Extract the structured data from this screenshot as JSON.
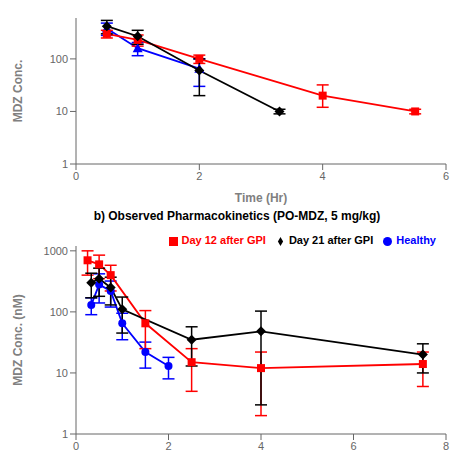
{
  "chart_data": [
    {
      "type": "line",
      "x_label": "Time (Hr)",
      "y_label": "MDZ Conc.",
      "log": "y",
      "grid": false,
      "xlim": [
        0,
        6
      ],
      "xticks": [
        0,
        2,
        4,
        6
      ],
      "ylim": [
        1,
        600
      ],
      "yticks": [
        1,
        10,
        100
      ],
      "series": [
        {
          "color": "#0000FF",
          "marker": "triangle",
          "x": [
            0.5,
            1.0,
            2.0
          ],
          "values": [
            380,
            160,
            65
          ],
          "error_low": [
            100,
            45,
            35
          ],
          "error_high": [
            100,
            45,
            35
          ]
        },
        {
          "color": "#FF0000",
          "marker": "square",
          "x": [
            0.5,
            1.0,
            2.0,
            4.0,
            5.5
          ],
          "values": [
            300,
            230,
            100,
            20,
            10
          ],
          "error_low": [
            50,
            55,
            18,
            8,
            1
          ],
          "error_high": [
            50,
            55,
            18,
            12,
            1
          ]
        },
        {
          "color": "#000000",
          "marker": "diamond",
          "x": [
            0.5,
            1.0,
            2.0,
            3.3
          ],
          "values": [
            420,
            270,
            60,
            10
          ],
          "error_low": [
            120,
            80,
            40,
            1
          ],
          "error_high": [
            120,
            80,
            40,
            1
          ]
        }
      ]
    },
    {
      "type": "line",
      "title": "b) Observed Pharmacokinetics (PO-MDZ, 5 mg/kg)",
      "y_label": "MDZ Conc. (nM)",
      "log": "y",
      "grid": false,
      "legend": "upper right",
      "xlim": [
        0,
        8
      ],
      "xticks": [
        0,
        2,
        4,
        6,
        8
      ],
      "ylim": [
        1,
        1200
      ],
      "yticks": [
        1,
        10,
        100,
        1000
      ],
      "series": [
        {
          "name": "Healthy",
          "color": "#0000FF",
          "marker": "circle",
          "x": [
            0.33,
            0.5,
            0.75,
            1.0,
            1.5,
            2.0
          ],
          "values": [
            130,
            280,
            220,
            65,
            22,
            13
          ],
          "error_low": [
            40,
            140,
            100,
            30,
            10,
            5
          ],
          "error_high": [
            40,
            140,
            100,
            30,
            10,
            5
          ]
        },
        {
          "name": "Day 12 after GPI",
          "color": "#FF0000",
          "marker": "square",
          "x": [
            0.25,
            0.5,
            0.75,
            1.5,
            2.5,
            4.0,
            7.5
          ],
          "values": [
            700,
            600,
            400,
            65,
            15,
            12,
            14
          ],
          "error_low": [
            300,
            250,
            180,
            40,
            10,
            10,
            8
          ],
          "error_high": [
            300,
            250,
            180,
            40,
            10,
            10,
            8
          ]
        },
        {
          "name": "Day 21 after GPI",
          "color": "#000000",
          "marker": "diamond",
          "x": [
            0.33,
            0.5,
            0.75,
            1.0,
            2.5,
            4.0,
            7.5
          ],
          "values": [
            300,
            350,
            250,
            110,
            35,
            48,
            20
          ],
          "error_low": [
            130,
            170,
            120,
            65,
            22,
            45,
            10
          ],
          "error_high": [
            130,
            170,
            120,
            65,
            22,
            55,
            10
          ]
        }
      ]
    }
  ]
}
